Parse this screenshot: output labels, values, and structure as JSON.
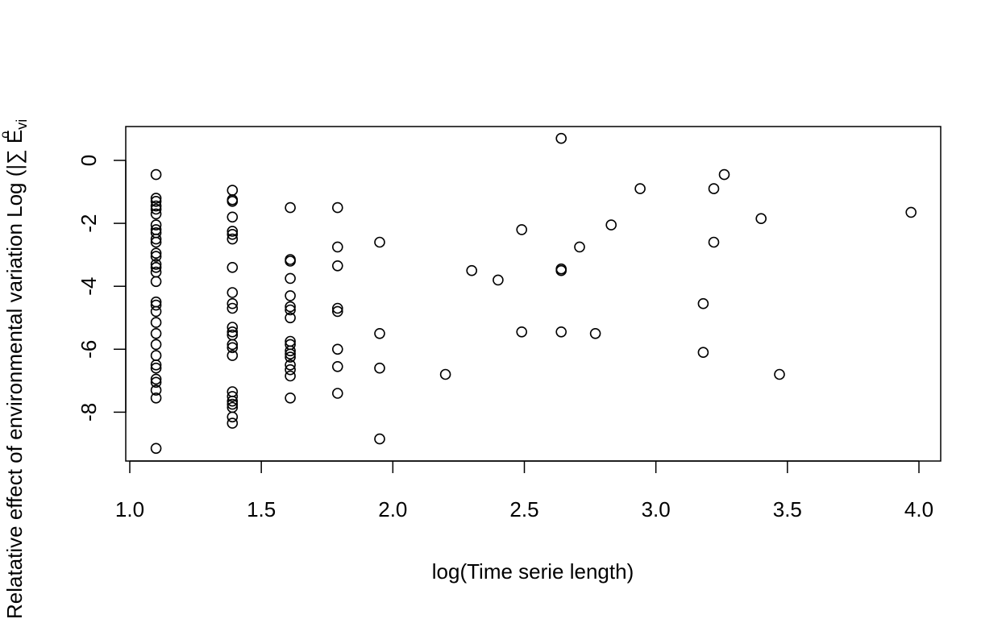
{
  "chart_data": {
    "type": "scatter",
    "title": "",
    "xlabel": "log(Time serie length)",
    "ylabel": "Relatative effect of environmental variation Log (|∑ E",
    "ylabel_sub": "vi",
    "ylabel_sup": "o",
    "xlim": [
      1.0,
      4.0
    ],
    "ylim": [
      -9.2,
      0.7
    ],
    "x_ticks": [
      1.0,
      1.5,
      2.0,
      2.5,
      3.0,
      3.5,
      4.0
    ],
    "x_tick_labels": [
      "1.0",
      "1.5",
      "2.0",
      "2.5",
      "3.0",
      "3.5",
      "4.0"
    ],
    "y_ticks": [
      0,
      -2,
      -4,
      -6,
      -8
    ],
    "y_tick_labels": [
      "0",
      "-2",
      "-4",
      "-6",
      "-8"
    ],
    "grid": false,
    "legend": "none",
    "marker": "open-circle",
    "colors": {
      "points": "#000000",
      "axes": "#000000",
      "background": "#ffffff"
    },
    "points": [
      [
        1.1,
        -0.45
      ],
      [
        1.1,
        -1.2
      ],
      [
        1.1,
        -1.3
      ],
      [
        1.1,
        -1.45
      ],
      [
        1.1,
        -1.55
      ],
      [
        1.1,
        -1.7
      ],
      [
        1.1,
        -2.05
      ],
      [
        1.1,
        -2.2
      ],
      [
        1.1,
        -2.3
      ],
      [
        1.1,
        -2.5
      ],
      [
        1.1,
        -2.6
      ],
      [
        1.1,
        -2.95
      ],
      [
        1.1,
        -3.05
      ],
      [
        1.1,
        -3.3
      ],
      [
        1.1,
        -3.4
      ],
      [
        1.1,
        -3.55
      ],
      [
        1.1,
        -3.85
      ],
      [
        1.1,
        -4.5
      ],
      [
        1.1,
        -4.6
      ],
      [
        1.1,
        -4.8
      ],
      [
        1.1,
        -5.15
      ],
      [
        1.1,
        -5.5
      ],
      [
        1.1,
        -5.85
      ],
      [
        1.1,
        -6.2
      ],
      [
        1.1,
        -6.5
      ],
      [
        1.1,
        -6.6
      ],
      [
        1.1,
        -6.95
      ],
      [
        1.1,
        -7.05
      ],
      [
        1.1,
        -7.3
      ],
      [
        1.1,
        -7.55
      ],
      [
        1.1,
        -9.15
      ],
      [
        1.39,
        -0.95
      ],
      [
        1.39,
        -1.25
      ],
      [
        1.39,
        -1.3
      ],
      [
        1.39,
        -1.8
      ],
      [
        1.39,
        -2.25
      ],
      [
        1.39,
        -2.35
      ],
      [
        1.39,
        -2.5
      ],
      [
        1.39,
        -3.4
      ],
      [
        1.39,
        -4.2
      ],
      [
        1.39,
        -4.55
      ],
      [
        1.39,
        -4.7
      ],
      [
        1.39,
        -5.3
      ],
      [
        1.39,
        -5.45
      ],
      [
        1.39,
        -5.55
      ],
      [
        1.39,
        -5.85
      ],
      [
        1.39,
        -5.95
      ],
      [
        1.39,
        -6.2
      ],
      [
        1.39,
        -7.35
      ],
      [
        1.39,
        -7.5
      ],
      [
        1.39,
        -7.65
      ],
      [
        1.39,
        -7.75
      ],
      [
        1.39,
        -7.85
      ],
      [
        1.39,
        -8.15
      ],
      [
        1.39,
        -8.35
      ],
      [
        1.61,
        -1.5
      ],
      [
        1.61,
        -3.15
      ],
      [
        1.61,
        -3.2
      ],
      [
        1.61,
        -3.75
      ],
      [
        1.61,
        -4.3
      ],
      [
        1.61,
        -4.65
      ],
      [
        1.61,
        -4.75
      ],
      [
        1.61,
        -5.0
      ],
      [
        1.61,
        -5.75
      ],
      [
        1.61,
        -5.85
      ],
      [
        1.61,
        -6.05
      ],
      [
        1.61,
        -6.15
      ],
      [
        1.61,
        -6.25
      ],
      [
        1.61,
        -6.5
      ],
      [
        1.61,
        -6.65
      ],
      [
        1.61,
        -6.85
      ],
      [
        1.61,
        -7.55
      ],
      [
        1.79,
        -1.5
      ],
      [
        1.79,
        -2.75
      ],
      [
        1.79,
        -3.35
      ],
      [
        1.79,
        -4.7
      ],
      [
        1.79,
        -4.8
      ],
      [
        1.79,
        -6.0
      ],
      [
        1.79,
        -6.55
      ],
      [
        1.79,
        -7.4
      ],
      [
        1.95,
        -2.6
      ],
      [
        1.95,
        -5.5
      ],
      [
        1.95,
        -6.6
      ],
      [
        1.95,
        -8.85
      ],
      [
        2.2,
        -6.8
      ],
      [
        2.3,
        -3.5
      ],
      [
        2.4,
        -3.8
      ],
      [
        2.49,
        -2.2
      ],
      [
        2.49,
        -5.45
      ],
      [
        2.64,
        0.7
      ],
      [
        2.64,
        -3.45
      ],
      [
        2.64,
        -3.5
      ],
      [
        2.64,
        -5.45
      ],
      [
        2.71,
        -2.75
      ],
      [
        2.77,
        -5.5
      ],
      [
        2.83,
        -2.05
      ],
      [
        2.94,
        -0.9
      ],
      [
        3.18,
        -4.55
      ],
      [
        3.18,
        -6.1
      ],
      [
        3.22,
        -0.9
      ],
      [
        3.22,
        -2.6
      ],
      [
        3.26,
        -0.45
      ],
      [
        3.4,
        -1.85
      ],
      [
        3.47,
        -6.8
      ],
      [
        3.97,
        -1.65
      ]
    ]
  }
}
